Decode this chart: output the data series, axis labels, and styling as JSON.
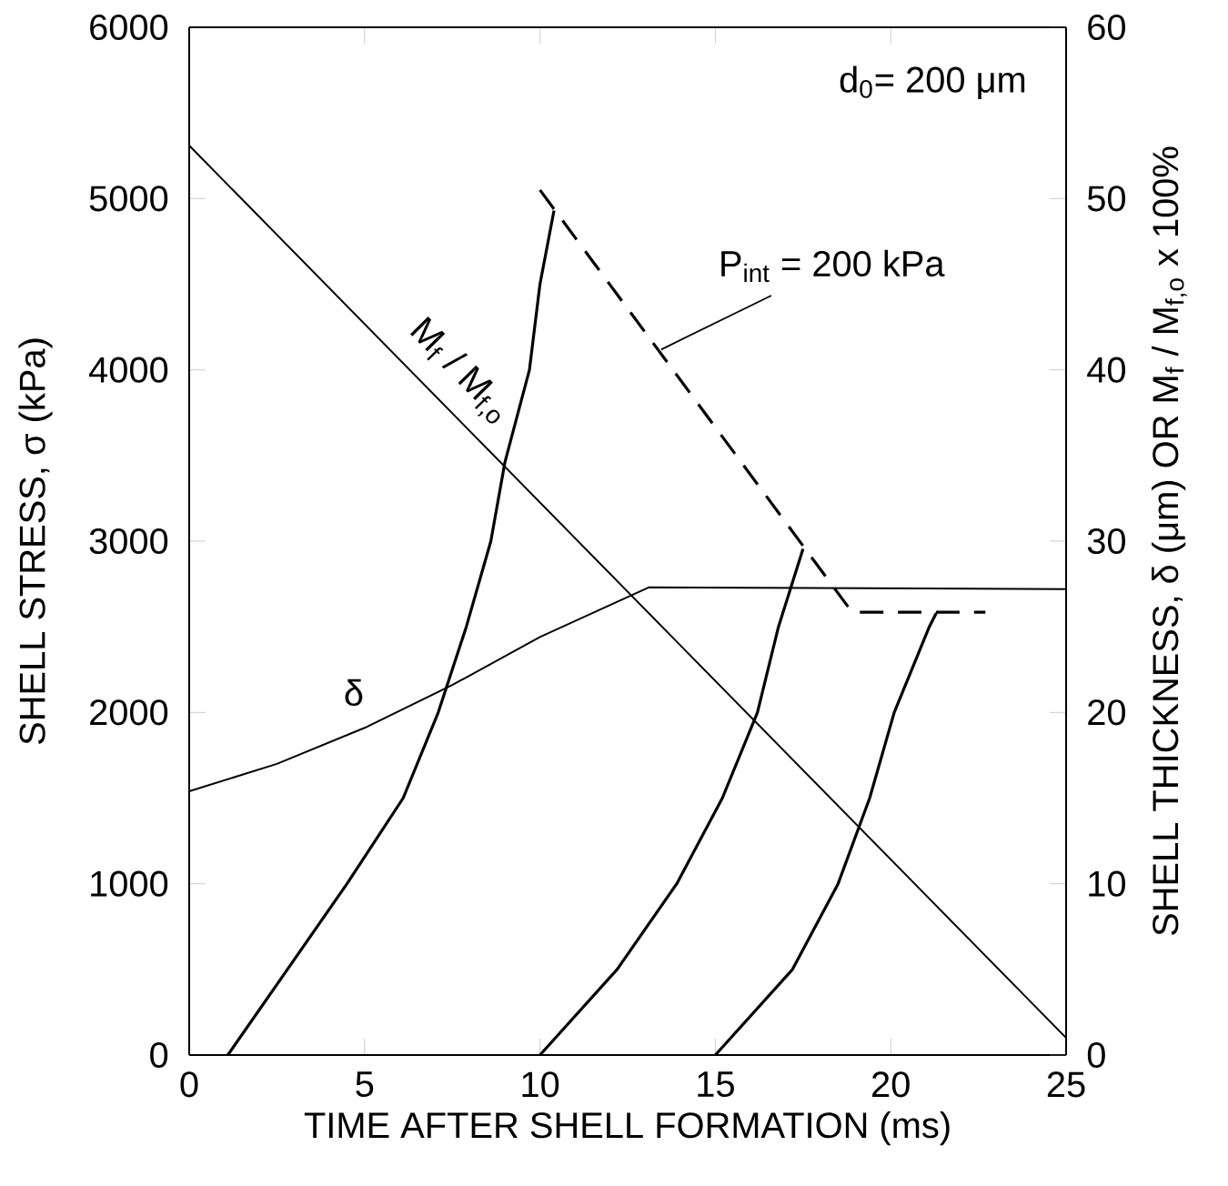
{
  "chart_data": {
    "type": "line",
    "xlabel": "TIME AFTER SHELL FORMATION (ms)",
    "ylabel": "SHELL STRESS, σ (kPa)",
    "y2label": "SHELL THICKNESS, δ (μm) OR M$_{f}$ / M$_{f,o}$ x 100%",
    "xlim": [
      0,
      25
    ],
    "xticks": [
      0,
      5,
      10,
      15,
      20,
      25
    ],
    "ylim": [
      0,
      6000
    ],
    "yticks": [
      0,
      1000,
      2000,
      3000,
      4000,
      5000,
      6000
    ],
    "y2lim": [
      0,
      60
    ],
    "y2ticks": [
      0,
      10,
      20,
      30,
      40,
      50,
      60
    ],
    "annotations": [
      "d$_{0}$= 200 μm"
    ],
    "series": [
      {
        "color": "#000000",
        "x": [
          1.1,
          2.8,
          4.5,
          6.1,
          7.1,
          7.9,
          8.6,
          9.0,
          9.7,
          10.0,
          10.4
        ],
        "values": [
          0,
          500,
          1000,
          1500,
          2000,
          2500,
          3000,
          3460,
          4000,
          4500,
          4930
        ]
      },
      {
        "color": "#000000",
        "x": [
          10.0,
          12.2,
          13.9,
          15.2,
          16.2,
          16.8,
          17.5
        ],
        "values": [
          0,
          500,
          1000,
          1500,
          2000,
          2500,
          2955
        ]
      },
      {
        "color": "#000000",
        "x": [
          15.0,
          17.2,
          18.5,
          19.4,
          20.1,
          21.1,
          21.3
        ],
        "values": [
          0,
          500,
          1000,
          1500,
          2000,
          2500,
          2580
        ]
      },
      {
        "name": "P$_{int}$ = 200 kPa",
        "color": "#000000",
        "line_style": "dashed",
        "x": [
          10.0,
          18.9,
          22.7
        ],
        "values": [
          5050,
          2585,
          2585
        ]
      },
      {
        "name": "M$_{f}$ / M$_{f,o}$",
        "color": "#000000",
        "axis": "y2",
        "x": [
          0,
          25
        ],
        "values": [
          53.1,
          1.0
        ]
      },
      {
        "name": "δ",
        "color": "#000000",
        "axis": "y2",
        "x": [
          0,
          2.5,
          5,
          7.5,
          10,
          13.1,
          25
        ],
        "values": [
          15.4,
          17.0,
          19.1,
          21.6,
          24.4,
          27.3,
          27.2
        ]
      }
    ]
  }
}
